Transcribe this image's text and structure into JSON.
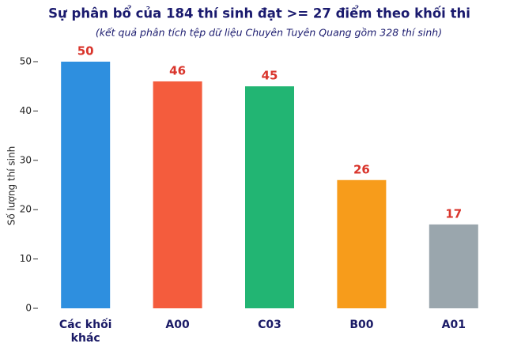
{
  "chart_data": {
    "type": "bar",
    "title": "Sự phân bổ của 184 thí sinh đạt >= 27 điểm theo khối thi",
    "subtitle": "(kết quả phân tích tệp dữ liệu Chuyên Tuyên Quang gồm 328 thí sinh)",
    "y_label": "Số lượng thí sinh",
    "categories": [
      "Các khối khác",
      "A00",
      "C03",
      "B00",
      "A01"
    ],
    "values": [
      50,
      46,
      45,
      26,
      17
    ],
    "colors": [
      "#2e8fdf",
      "#f45c3d",
      "#22b573",
      "#f79c1b",
      "#9aa6ad"
    ],
    "ylim": [
      0,
      50
    ],
    "yticks": [
      0,
      10,
      20,
      30,
      40,
      50
    ],
    "grid": false
  }
}
